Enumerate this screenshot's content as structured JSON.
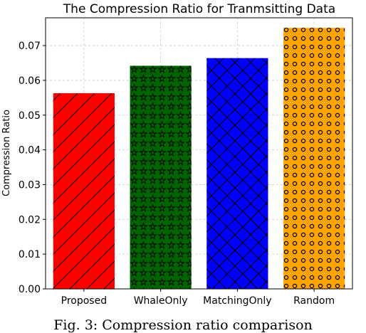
{
  "chart_data": {
    "type": "bar",
    "title": "The Compression Ratio for Tranmsitting Data",
    "xlabel": "",
    "ylabel": "Compression Ratio",
    "categories": [
      "Proposed",
      "WhaleOnly",
      "MatchingOnly",
      "Random"
    ],
    "values": [
      0.0563,
      0.0642,
      0.0664,
      0.0751
    ],
    "colors": [
      "#ff0000",
      "#006400",
      "#0000ff",
      "#ffa500"
    ],
    "hatches": [
      "diagonal",
      "stars",
      "crosshatch",
      "circles"
    ],
    "ylim": [
      0,
      0.078
    ],
    "yticks": [
      "0.00",
      "0.01",
      "0.02",
      "0.03",
      "0.04",
      "0.05",
      "0.06",
      "0.07"
    ],
    "grid": true
  },
  "caption": "Fig. 3: Compression ratio comparison"
}
